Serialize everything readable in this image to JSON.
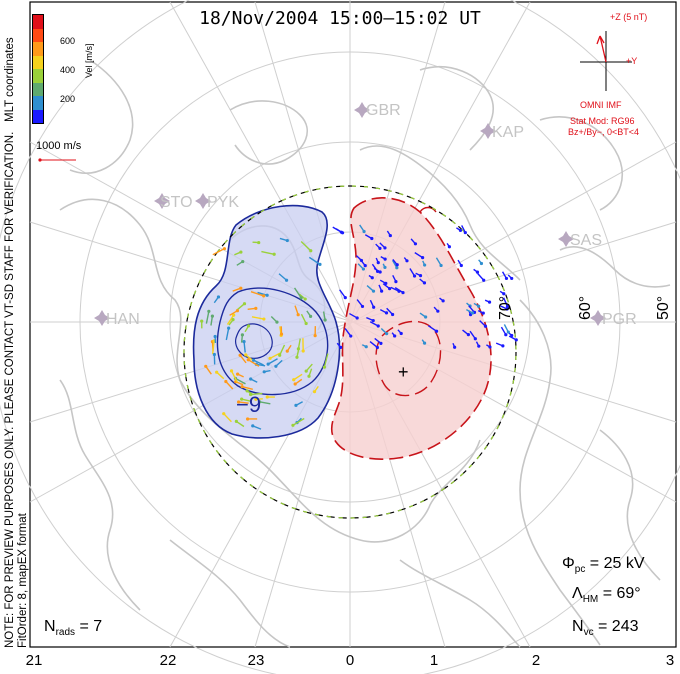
{
  "title": "18/Nov/2004  15:00–15:02 UT",
  "side_note": {
    "line1": "NOTE: FOR PREVIEW PURPOSES ONLY. PLEASE CONTACT VT-SD STAFF FOR VERIFICATION.",
    "line2": "FitOrder: 8, mapEX format",
    "coords": "MLT coordinates"
  },
  "colorbar": {
    "label": "Vel [m/s]",
    "ticks": [
      "600",
      "400",
      "200"
    ],
    "colors": [
      "#1a1aff",
      "#2f8fd0",
      "#5faa6f",
      "#9ad13a",
      "#f5d21e",
      "#ff9a1a",
      "#ff4a14",
      "#e0101a"
    ]
  },
  "scale_vector": {
    "label": "1000 m/s"
  },
  "imf": {
    "bz_label": "+Z (5 nT)",
    "by_label": "+Y",
    "source": "OMNI IMF",
    "model": "Stat Mod: RG96",
    "condition": "Bz+/By−, 0<BT<4"
  },
  "stations": [
    {
      "code": "GBR"
    },
    {
      "code": "KAP"
    },
    {
      "code": "STO"
    },
    {
      "code": "PYK"
    },
    {
      "code": "SAS"
    },
    {
      "code": "HAN"
    },
    {
      "code": "PGR"
    }
  ],
  "latitude_labels": [
    "70°",
    "60°",
    "50°"
  ],
  "contour_labels": {
    "min": "−9",
    "max": "+"
  },
  "stats": {
    "phi_sym": "Φ",
    "phi_sub": "pc",
    "phi_value": "= 25 kV",
    "lam_sym": "Λ",
    "lam_sub": "HM",
    "lam_value": "= 69°",
    "nvc_sym": "N",
    "nvc_sub": "vc",
    "nvc_value": "= 243",
    "nrads_sym": "N",
    "nrads_sub": "rads",
    "nrads_value": "= 7"
  },
  "mlt_axis": [
    "21",
    "22",
    "23",
    "0",
    "1",
    "2",
    "3"
  ],
  "colors": {
    "negative_cell": "#c8cdf0",
    "negative_line": "#1c2a9c",
    "positive_cell": "#f6d0d0",
    "positive_line": "#c8141a",
    "land": "#c6c6c6",
    "grid": "#cfcfcf",
    "station": "#b8a8c0"
  }
}
